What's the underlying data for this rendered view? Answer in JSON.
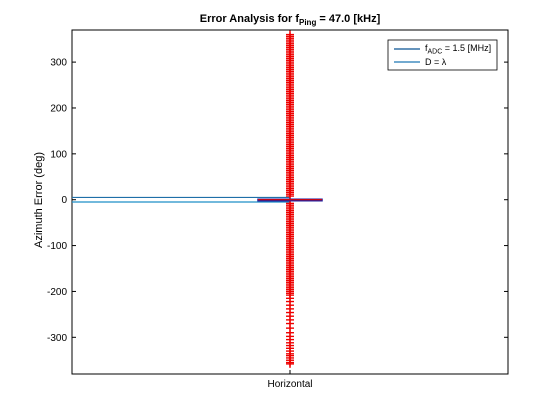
{
  "chart_data": {
    "type": "boxplot",
    "title": {
      "prefix": "Error Analysis for f",
      "subscript": "Ping",
      "suffix": " = 47.0 [kHz]"
    },
    "xlabel": "",
    "ylabel": "Azimuth Error (deg)",
    "categories": [
      "Horizontal"
    ],
    "ylim": [
      -380,
      370
    ],
    "yticks": [
      -300,
      -200,
      -100,
      0,
      100,
      200,
      300
    ],
    "grid": false,
    "legend": {
      "placement": "top-right",
      "entries": [
        {
          "prefix": "f",
          "subscript": "ADC",
          "suffix": " = 1.5 [MHz]",
          "color": "#0b5394"
        },
        {
          "prefix": "D = λ",
          "subscript": "",
          "suffix": "",
          "color": "#1f77b4"
        }
      ]
    },
    "reference_lines": [
      {
        "series": "f_ADC = 1.5 [MHz]",
        "y": 5,
        "color": "#1f6fa8"
      },
      {
        "series": "D = λ",
        "y": -5,
        "color": "#1f8fc8"
      }
    ],
    "box": {
      "category": "Horizontal",
      "median": 0,
      "q1": -1,
      "q3": 1,
      "whisker_low": -2,
      "whisker_high": 2,
      "box_color": "#1f1f9f",
      "median_color": "#e00000"
    },
    "outliers": {
      "category": "Horizontal",
      "color": "#ee0000",
      "marker": "+",
      "values": [
        360,
        356,
        352,
        348,
        344,
        340,
        336,
        332,
        328,
        324,
        320,
        316,
        312,
        308,
        304,
        300,
        296,
        292,
        288,
        284,
        280,
        276,
        272,
        268,
        264,
        260,
        256,
        252,
        248,
        244,
        240,
        236,
        232,
        228,
        224,
        220,
        216,
        212,
        208,
        204,
        200,
        196,
        192,
        188,
        184,
        180,
        176,
        172,
        168,
        164,
        160,
        156,
        152,
        148,
        144,
        140,
        136,
        132,
        128,
        124,
        120,
        116,
        112,
        108,
        104,
        100,
        96,
        92,
        88,
        84,
        80,
        76,
        72,
        68,
        64,
        60,
        56,
        52,
        48,
        44,
        40,
        36,
        32,
        28,
        24,
        20,
        16,
        12,
        8,
        -8,
        -12,
        -16,
        -20,
        -24,
        -28,
        -32,
        -36,
        -40,
        -44,
        -48,
        -52,
        -56,
        -60,
        -64,
        -68,
        -72,
        -76,
        -80,
        -84,
        -88,
        -92,
        -96,
        -100,
        -104,
        -108,
        -112,
        -116,
        -120,
        -124,
        -128,
        -132,
        -136,
        -140,
        -144,
        -148,
        -152,
        -156,
        -160,
        -164,
        -168,
        -172,
        -176,
        -180,
        -184,
        -188,
        -192,
        -196,
        -200,
        -204,
        -208,
        -215,
        -222,
        -230,
        -238,
        -246,
        -254,
        -262,
        -270,
        -280,
        -290,
        -298,
        -305,
        -312,
        -318,
        -324,
        -330,
        -336,
        -340,
        -345,
        -350,
        -355,
        -358
      ]
    }
  }
}
